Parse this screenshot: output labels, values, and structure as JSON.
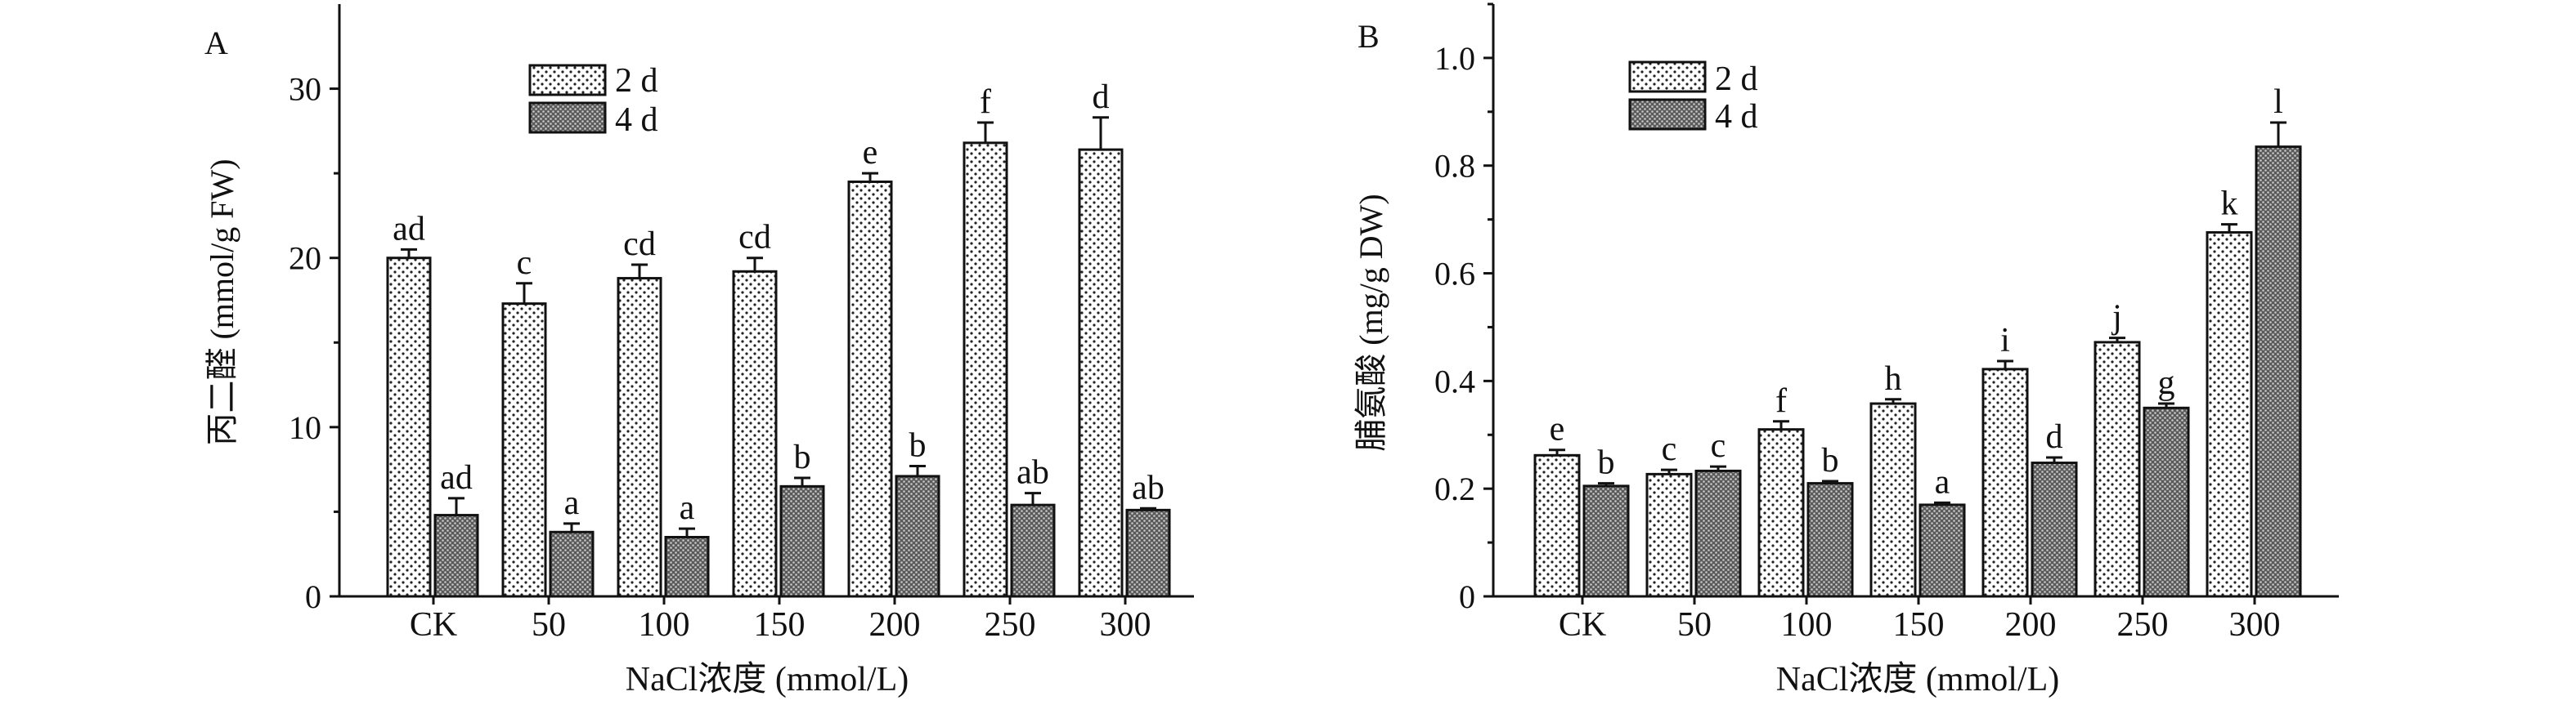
{
  "chart_data": [
    {
      "type": "bar",
      "panel_label": "A",
      "categories": [
        "CK",
        "50",
        "100",
        "150",
        "200",
        "250",
        "300"
      ],
      "series": [
        {
          "name": "2 d",
          "values": [
            20.0,
            17.3,
            18.8,
            19.2,
            24.5,
            26.8,
            26.4
          ],
          "errors": [
            0.5,
            1.2,
            0.8,
            0.8,
            0.5,
            1.2,
            1.9
          ],
          "letters": [
            "ad",
            "c",
            "cd",
            "cd",
            "e",
            "f",
            "d"
          ]
        },
        {
          "name": "4 d",
          "values": [
            4.8,
            3.8,
            3.5,
            6.5,
            7.1,
            5.4,
            5.1
          ],
          "errors": [
            1.0,
            0.5,
            0.5,
            0.5,
            0.6,
            0.7,
            0.1
          ],
          "letters": [
            "ad",
            "a",
            "a",
            "b",
            "b",
            "ab",
            "ab"
          ]
        }
      ],
      "xlabel": "NaCl浓度 (mmol/L)",
      "ylabel": "丙二醛 (mmol/g FW)",
      "ylim": [
        0,
        35
      ],
      "yticks": [
        "0",
        "10",
        "20",
        "30"
      ],
      "grid": false,
      "legend_position": "top-center"
    },
    {
      "type": "bar",
      "panel_label": "B",
      "categories": [
        "CK",
        "50",
        "100",
        "150",
        "200",
        "250",
        "300"
      ],
      "series": [
        {
          "name": "2 d",
          "values": [
            0.262,
            0.227,
            0.31,
            0.358,
            0.422,
            0.472,
            0.676
          ],
          "errors": [
            0.01,
            0.008,
            0.015,
            0.008,
            0.015,
            0.008,
            0.015
          ],
          "letters": [
            "e",
            "c",
            "f",
            "h",
            "i",
            "j",
            "k"
          ]
        },
        {
          "name": "4 d",
          "values": [
            0.205,
            0.233,
            0.21,
            0.17,
            0.248,
            0.35,
            0.835
          ],
          "errors": [
            0.005,
            0.008,
            0.004,
            0.004,
            0.01,
            0.008,
            0.045
          ],
          "letters": [
            "b",
            "c",
            "b",
            "a",
            "d",
            "g",
            "l"
          ]
        }
      ],
      "xlabel": "NaCl浓度 (mmol/L)",
      "ylabel": "脯氨酸 (mg/g DW)",
      "ylim": [
        0,
        1.1
      ],
      "yticks": [
        "0",
        "0.2",
        "0.4",
        "0.6",
        "0.8",
        "1.0"
      ],
      "grid": false,
      "legend_position": "top-left"
    }
  ]
}
